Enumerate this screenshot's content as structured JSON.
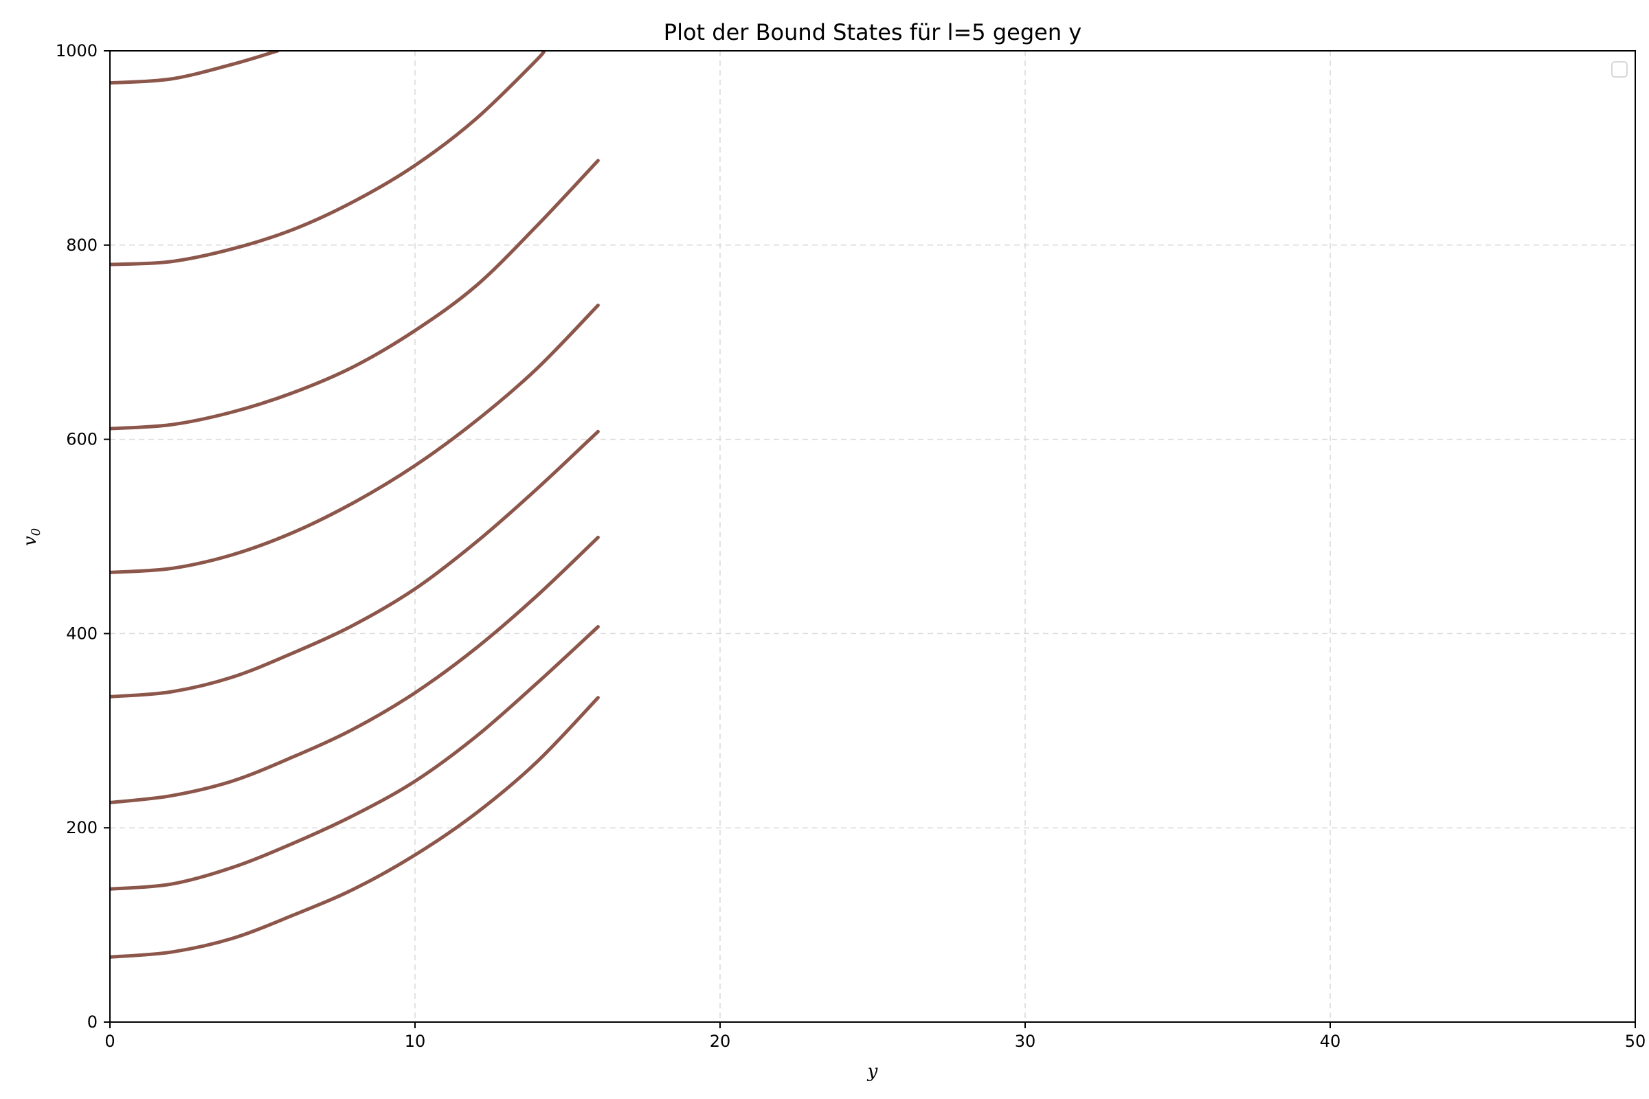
{
  "chart_data": {
    "type": "line",
    "title": "Plot der Bound States für l=5 gegen y",
    "xlabel": "y",
    "ylabel_main": "v",
    "ylabel_sub": "0",
    "xlim": [
      0,
      50
    ],
    "ylim": [
      0,
      1000
    ],
    "xticks": [
      0,
      10,
      20,
      30,
      40,
      50
    ],
    "yticks": [
      0,
      200,
      400,
      600,
      800,
      1000
    ],
    "grid": true,
    "legend": "top-right, empty",
    "line_color": "#8c564b",
    "series": [
      {
        "x": [
          0,
          2,
          4,
          6,
          8,
          10,
          12,
          14,
          16
        ],
        "values": [
          67,
          72,
          86,
          110,
          137,
          172,
          215,
          268,
          334
        ]
      },
      {
        "x": [
          0,
          2,
          4,
          6,
          8,
          10,
          12,
          14,
          16
        ],
        "values": [
          137,
          142,
          159,
          184,
          213,
          248,
          294,
          349,
          407
        ]
      },
      {
        "x": [
          0,
          2,
          4,
          6,
          8,
          10,
          12,
          14,
          16
        ],
        "values": [
          226,
          233,
          248,
          273,
          302,
          339,
          385,
          439,
          499
        ]
      },
      {
        "x": [
          0,
          2,
          4,
          6,
          8,
          10,
          12,
          14,
          16
        ],
        "values": [
          335,
          340,
          355,
          380,
          409,
          446,
          494,
          549,
          608
        ]
      },
      {
        "x": [
          0,
          2,
          4,
          6,
          8,
          10,
          12,
          14,
          16
        ],
        "values": [
          463,
          467,
          481,
          504,
          535,
          573,
          619,
          673,
          738
        ]
      },
      {
        "x": [
          0,
          2,
          4,
          6,
          8,
          10,
          12,
          14,
          16
        ],
        "values": [
          611,
          615,
          628,
          648,
          675,
          712,
          758,
          820,
          887
        ]
      },
      {
        "x": [
          0,
          2,
          4,
          6,
          8,
          10,
          12,
          14,
          14.2
        ],
        "values": [
          780,
          783,
          796,
          816,
          845,
          882,
          930,
          991,
          1000
        ]
      },
      {
        "x": [
          0,
          2,
          4,
          5.5
        ],
        "values": [
          967,
          971,
          986,
          1000
        ]
      }
    ]
  }
}
